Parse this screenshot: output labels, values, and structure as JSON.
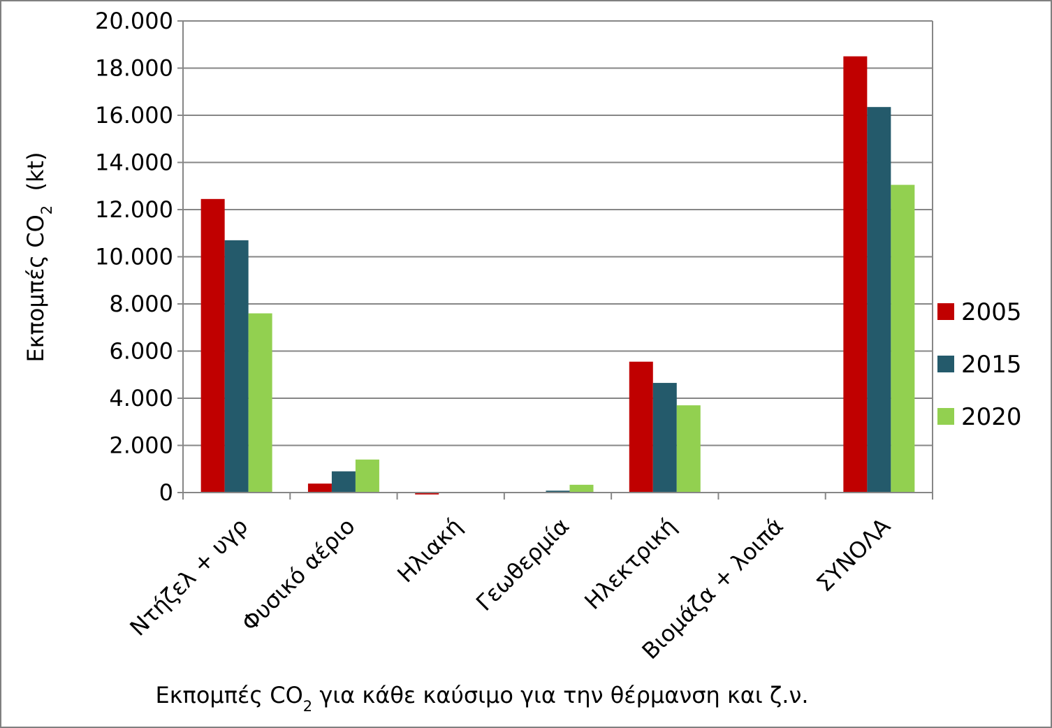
{
  "chart_data": {
    "type": "bar",
    "y_label": {
      "main": "Εκπομπές CO",
      "sub": "2",
      "suffix": "  (kt)"
    },
    "x_label": {
      "main": "Εκπομπές CO",
      "sub": "2",
      "suffix": " για κάθε καύσιμο για την θέρμανση και ζ.ν."
    },
    "categories": [
      "Ντήζελ + υγρ",
      "Φυσικό αέριο",
      "Ηλιακή",
      "Γεωθερμία",
      "Ηλεκτρική",
      "Βιομάζα + λοιπά",
      "ΣΥΝΟΛΑ"
    ],
    "series": [
      {
        "name": "2005",
        "color": "#c00000",
        "values": [
          12450,
          380,
          -80,
          0,
          5550,
          0,
          18500
        ]
      },
      {
        "name": "2015",
        "color": "#245a6b",
        "values": [
          10700,
          900,
          0,
          80,
          4650,
          0,
          16350
        ]
      },
      {
        "name": "2020",
        "color": "#92d050",
        "values": [
          7600,
          1400,
          0,
          330,
          3700,
          0,
          13050
        ]
      }
    ],
    "ylim": [
      0,
      20000
    ],
    "yticks": [
      0,
      {
        "value": 2000,
        "label": "2.000"
      },
      {
        "value": 4000,
        "label": "4.000"
      },
      {
        "value": 6000,
        "label": "6.000"
      },
      {
        "value": 8000,
        "label": "8.000"
      },
      {
        "value": 10000,
        "label": "10.000"
      },
      {
        "value": 12000,
        "label": "12.000"
      },
      {
        "value": 14000,
        "label": "14.000"
      },
      {
        "value": 16000,
        "label": "16.000"
      },
      {
        "value": 18000,
        "label": "18.000"
      },
      {
        "value": 20000,
        "label": "20.000"
      }
    ],
    "grid": true,
    "legend": "right"
  }
}
